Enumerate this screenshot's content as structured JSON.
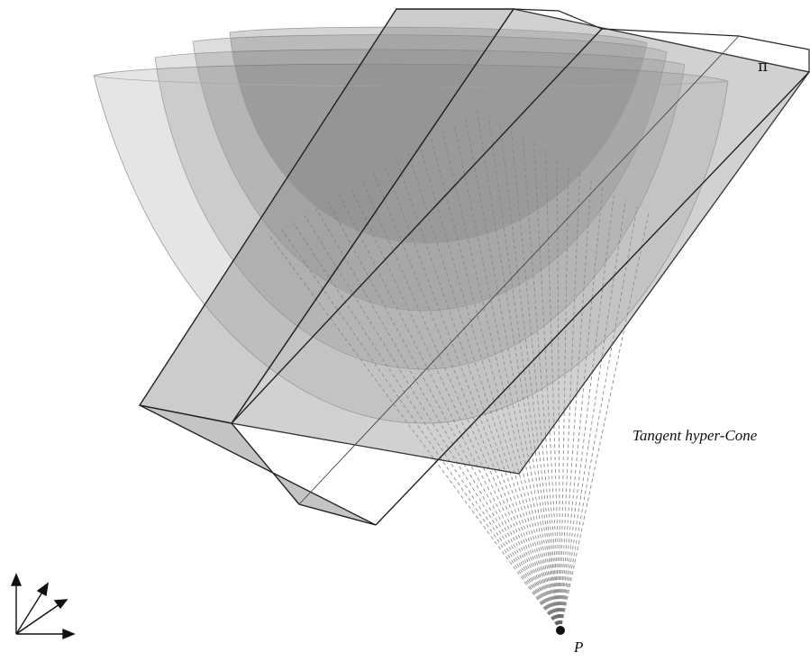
{
  "labels": {
    "plane": "π",
    "cone": "Tangent hyper-Cone",
    "apex": "P"
  },
  "colors": {
    "surface_fill": "#5a5a5a",
    "plane_fill": "#9a9a9a",
    "edge": "#222222",
    "ray": "#666666",
    "point": "#111111"
  },
  "icons": [
    "axes-icon"
  ]
}
